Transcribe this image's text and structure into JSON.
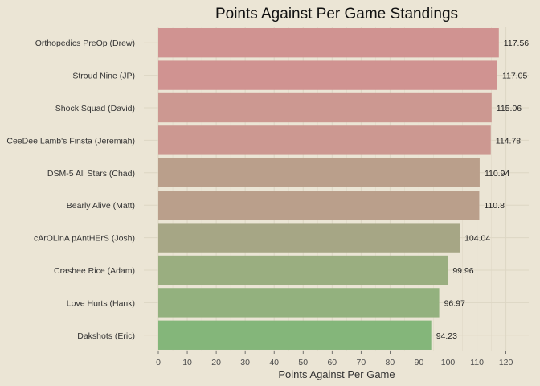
{
  "chart_data": {
    "type": "bar",
    "orientation": "horizontal",
    "title": "Points Against Per Game Standings",
    "xlabel": "Points Against Per Game",
    "ylabel": "",
    "xlim": [
      0,
      125
    ],
    "xticks": [
      "0",
      "10",
      "20",
      "30",
      "40",
      "50",
      "60",
      "70",
      "80",
      "90",
      "100",
      "110",
      "120"
    ],
    "grid": true,
    "legend": "none",
    "categories": [
      "Orthopedics PreOp (Drew)",
      "Stroud Nine (JP)",
      "Shock Squad (David)",
      "CeeDee Lamb's Finsta (Jeremiah)",
      "DSM-5 All Stars (Chad)",
      "Bearly Alive (Matt)",
      "cArOLinA pAntHErS (Josh)",
      "Crashee Rice (Adam)",
      "Love Hurts (Hank)",
      "Dakshots (Eric)"
    ],
    "values": [
      117.56,
      117.05,
      115.06,
      114.78,
      110.94,
      110.8,
      104.04,
      99.96,
      96.97,
      94.23
    ],
    "value_labels": [
      "117.56",
      "117.05",
      "115.06",
      "114.78",
      "110.94",
      "110.8",
      "104.04",
      "99.96",
      "96.97",
      "94.23"
    ],
    "bar_colors": [
      "#d09391",
      "#d09391",
      "#cc9891",
      "#cc9891",
      "#ba9f8b",
      "#ba9f8b",
      "#a6a685",
      "#9aae80",
      "#93b17e",
      "#84b67a"
    ]
  },
  "colors": {
    "background": "#ebe5d5",
    "gridline": "#ddd6c4"
  }
}
